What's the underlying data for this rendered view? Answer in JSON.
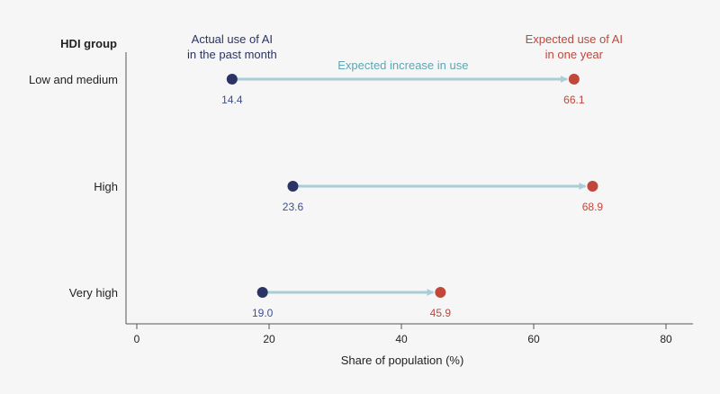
{
  "chart_data": {
    "type": "dumbbell",
    "categories": [
      "Low and medium",
      "High",
      "Very high"
    ],
    "category_header": "HDI group",
    "series": [
      {
        "name": "Actual use of AI in the past month",
        "label_lines": [
          "Actual use of AI",
          "in the past month"
        ],
        "values": [
          14.4,
          23.6,
          19.0
        ],
        "color": "#2a3464"
      },
      {
        "name": "Expected use of AI in one year",
        "label_lines": [
          "Expected use of AI",
          "in one year"
        ],
        "values": [
          66.1,
          68.9,
          45.9
        ],
        "color": "#c0473a"
      }
    ],
    "value_labels": {
      "actual": [
        "14.4",
        "23.6",
        "19.0"
      ],
      "expected": [
        "66.1",
        "68.9",
        "45.9"
      ]
    },
    "connector_label": "Expected increase in use",
    "connector_color": "#a7cdd6",
    "connector_label_color": "#5da6b3",
    "xlabel": "Share of population (%)",
    "xlim": [
      0,
      80
    ],
    "xticks": [
      "0",
      "20",
      "40",
      "60",
      "80"
    ],
    "tick_values": [
      0,
      20,
      40,
      60,
      80
    ],
    "actual_label_color": "#3b4f96",
    "expected_label_color": "#c0473a",
    "grid": false
  }
}
